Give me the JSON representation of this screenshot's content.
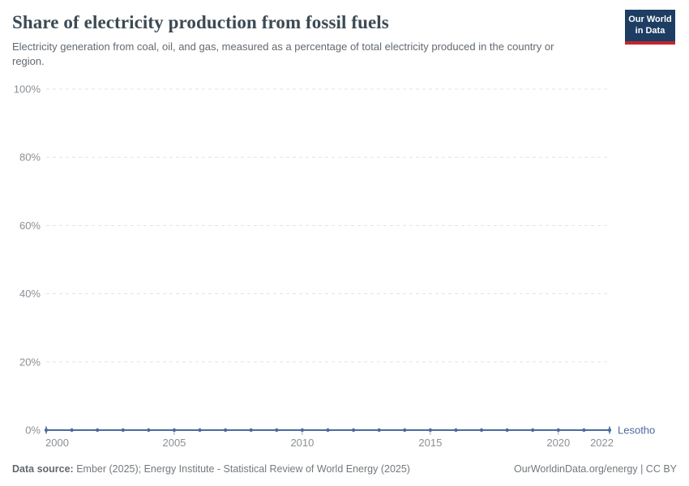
{
  "header": {
    "title": "Share of electricity production from fossil fuels",
    "subtitle": "Electricity generation from coal, oil, and gas, measured as a percentage of total electricity produced in the country or region."
  },
  "logo": {
    "line1": "Our World",
    "line2": "in Data",
    "bg_color": "#1d3d63",
    "stripe_color": "#c4262d"
  },
  "chart_data": {
    "type": "line",
    "title": "Share of electricity production from fossil fuels",
    "x": [
      2000,
      2001,
      2002,
      2003,
      2004,
      2005,
      2006,
      2007,
      2008,
      2009,
      2010,
      2011,
      2012,
      2013,
      2014,
      2015,
      2016,
      2017,
      2018,
      2019,
      2020,
      2021,
      2022
    ],
    "series": [
      {
        "name": "Lesotho",
        "color": "#4c6a9c",
        "values": [
          0,
          0,
          0,
          0,
          0,
          0,
          0,
          0,
          0,
          0,
          0,
          0,
          0,
          0,
          0,
          0,
          0,
          0,
          0,
          0,
          0,
          0,
          0
        ]
      }
    ],
    "xlim": [
      2000,
      2022
    ],
    "ylim": [
      0,
      100
    ],
    "xticks": [
      2000,
      2005,
      2010,
      2015,
      2020,
      2022
    ],
    "yticks": [
      0,
      20,
      40,
      60,
      80,
      100
    ],
    "unit_suffix": "%",
    "xlabel": "",
    "ylabel": "",
    "grid": true,
    "gridline_color": "#e1e3e5",
    "tick_label_color": "#8b9095",
    "axis_tick_color": "#a7adb3",
    "legend_position": "right-of-line"
  },
  "footer": {
    "datasource_label": "Data source:",
    "datasource_text": "Ember (2025); Energy Institute - Statistical Review of World Energy (2025)",
    "credit": "OurWorldinData.org/energy | CC BY"
  }
}
